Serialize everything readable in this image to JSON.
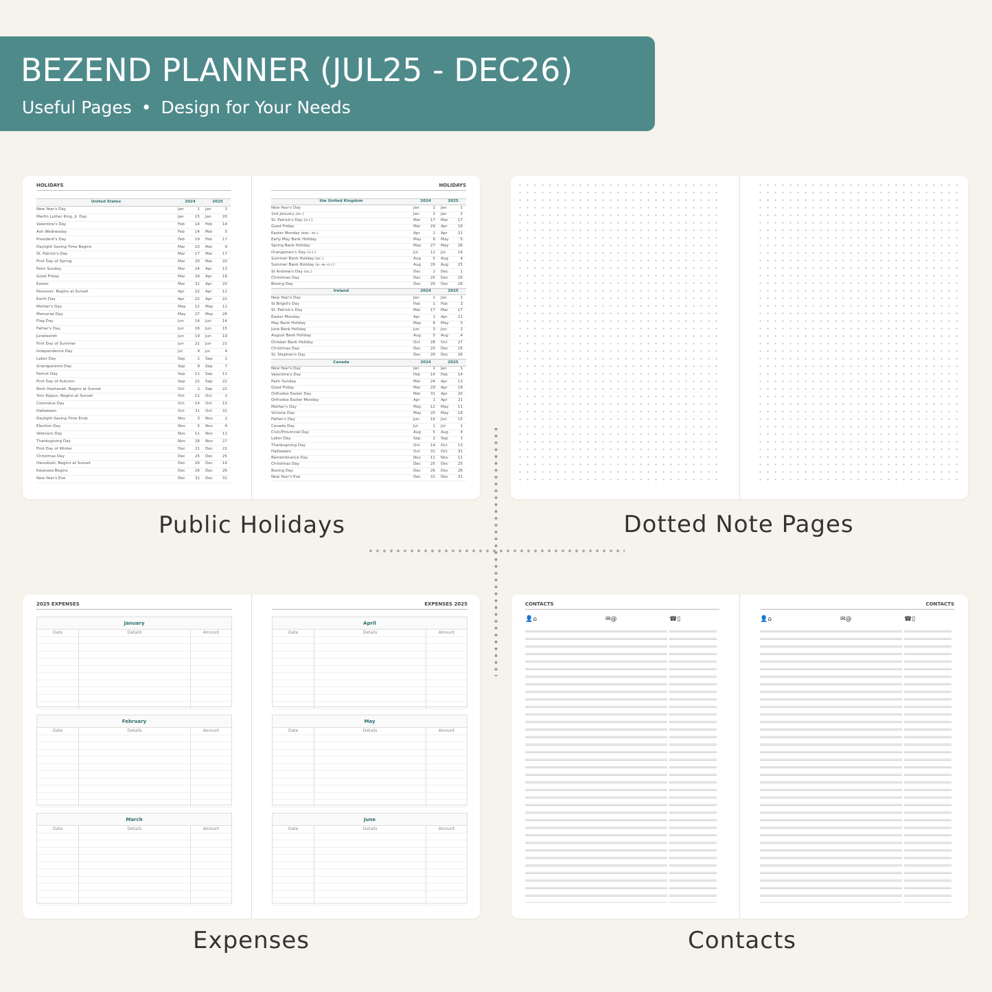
{
  "header": {
    "title": "BEZEND PLANNER (JUL25 - DEC26)",
    "subtitle_left": "Useful Pages",
    "subtitle_sep": "•",
    "subtitle_right": "Design for Your Needs",
    "color": "#4f8a8b"
  },
  "labels": {
    "holidays": "Public Holidays",
    "dotted": "Dotted Note Pages",
    "expenses": "Expenses",
    "contacts": "Contacts"
  },
  "holidays": {
    "page_title": "HOLIDAYS",
    "years": [
      "2024",
      "2025"
    ],
    "sections_left": [
      {
        "country": "United States",
        "rows": [
          [
            "New Year's Day",
            "Jan",
            "1",
            "Jan",
            "1"
          ],
          [
            "Martin Luther King, Jr. Day",
            "Jan",
            "15",
            "Jan",
            "20"
          ],
          [
            "Valentine's Day",
            "Feb",
            "14",
            "Feb",
            "14"
          ],
          [
            "Ash Wednesday",
            "Feb",
            "14",
            "Mar",
            "5"
          ],
          [
            "President's Day",
            "Feb",
            "19",
            "Feb",
            "17"
          ],
          [
            "Daylight Saving Time Begins",
            "Mar",
            "10",
            "Mar",
            "9"
          ],
          [
            "St. Patrick's Day",
            "Mar",
            "17",
            "Mar",
            "17"
          ],
          [
            "First Day of Spring",
            "Mar",
            "20",
            "Mar",
            "20"
          ],
          [
            "Palm Sunday",
            "Mar",
            "24",
            "Apr",
            "13"
          ],
          [
            "Good Friday",
            "Mar",
            "29",
            "Apr",
            "18"
          ],
          [
            "Easter",
            "Mar",
            "31",
            "Apr",
            "20"
          ],
          [
            "Passover, Begins at Sunset",
            "Apr",
            "22",
            "Apr",
            "12"
          ],
          [
            "Earth Day",
            "Apr",
            "22",
            "Apr",
            "22"
          ],
          [
            "Mother's Day",
            "May",
            "12",
            "May",
            "11"
          ],
          [
            "Memorial Day",
            "May",
            "27",
            "May",
            "26"
          ],
          [
            "Flag Day",
            "Jun",
            "14",
            "Jun",
            "14"
          ],
          [
            "Father's Day",
            "Jun",
            "16",
            "Jun",
            "15"
          ],
          [
            "Juneteenth",
            "Jun",
            "19",
            "Jun",
            "19"
          ],
          [
            "First Day of Summer",
            "Jun",
            "21",
            "Jun",
            "21"
          ],
          [
            "Independence Day",
            "Jul",
            "4",
            "Jul",
            "4"
          ],
          [
            "Labor Day",
            "Sep",
            "2",
            "Sep",
            "1"
          ],
          [
            "Grandparents Day",
            "Sep",
            "8",
            "Sep",
            "7"
          ],
          [
            "Patriot Day",
            "Sep",
            "11",
            "Sep",
            "11"
          ],
          [
            "First Day of Autumn",
            "Sep",
            "22",
            "Sep",
            "22"
          ],
          [
            "Rosh Hashanah, Begins at Sunset",
            "Oct",
            "2",
            "Sep",
            "22"
          ],
          [
            "Yom Kippur, Begins at Sunset",
            "Oct",
            "11",
            "Oct",
            "1"
          ],
          [
            "Columbus Day",
            "Oct",
            "14",
            "Oct",
            "13"
          ],
          [
            "Halloween",
            "Oct",
            "31",
            "Oct",
            "31"
          ],
          [
            "Daylight Saving Time Ends",
            "Nov",
            "3",
            "Nov",
            "2"
          ],
          [
            "Election Day",
            "Nov",
            "5",
            "Nov",
            "4"
          ],
          [
            "Veterans Day",
            "Nov",
            "11",
            "Nov",
            "11"
          ],
          [
            "Thanksgiving Day",
            "Nov",
            "28",
            "Nov",
            "27"
          ],
          [
            "First Day of Winter",
            "Dec",
            "21",
            "Dec",
            "21"
          ],
          [
            "Christmas Day",
            "Dec",
            "25",
            "Dec",
            "25"
          ],
          [
            "Hanukkah, Begins at Sunset",
            "Dec",
            "26",
            "Dec",
            "14"
          ],
          [
            "Kwanzaa Begins",
            "Dec",
            "26",
            "Dec",
            "26"
          ],
          [
            "New Year's Eve",
            "Dec",
            "31",
            "Dec",
            "31"
          ]
        ]
      }
    ],
    "sections_right": [
      {
        "country": "the United Kingdom",
        "rows": [
          [
            "New Year's Day",
            "Jan",
            "1",
            "Jan",
            "1"
          ],
          [
            "2nd January (sc.)",
            "Jan",
            "2",
            "Jan",
            "2"
          ],
          [
            "St. Patrick's Day (n.i.)",
            "Mar",
            "17",
            "Mar",
            "17"
          ],
          [
            "Good Friday",
            "Mar",
            "29",
            "Apr",
            "18"
          ],
          [
            "Easter Monday (exc. sc.)",
            "Apr",
            "1",
            "Apr",
            "21"
          ],
          [
            "Early May Bank Holiday",
            "May",
            "6",
            "May",
            "5"
          ],
          [
            "Spring Bank Holiday",
            "May",
            "27",
            "May",
            "26"
          ],
          [
            "Orangemen's Day (n.i.)",
            "Jul",
            "12",
            "Jul",
            "14"
          ],
          [
            "Summer Bank Holiday (sc.)",
            "Aug",
            "5",
            "Aug",
            "4"
          ],
          [
            "Summer Bank Holiday (e.-w.-n.i.)",
            "Aug",
            "26",
            "Aug",
            "25"
          ],
          [
            "St Andrew's Day (sc.)",
            "Dec",
            "2",
            "Dec",
            "1"
          ],
          [
            "Christmas Day",
            "Dec",
            "25",
            "Dec",
            "25"
          ],
          [
            "Boxing Day",
            "Dec",
            "26",
            "Dec",
            "26"
          ]
        ]
      },
      {
        "country": "Ireland",
        "rows": [
          [
            "New Year's Day",
            "Jan",
            "1",
            "Jan",
            "1"
          ],
          [
            "St Brigid's Day",
            "Feb",
            "1",
            "Feb",
            "3"
          ],
          [
            "St. Patrick's Day",
            "Mar",
            "17",
            "Mar",
            "17"
          ],
          [
            "Easter Monday",
            "Apr",
            "1",
            "Apr",
            "21"
          ],
          [
            "May Bank Holiday",
            "May",
            "6",
            "May",
            "5"
          ],
          [
            "June Bank Holiday",
            "Jun",
            "3",
            "Jun",
            "2"
          ],
          [
            "August Bank Holiday",
            "Aug",
            "5",
            "Aug",
            "4"
          ],
          [
            "October Bank Holiday",
            "Oct",
            "28",
            "Oct",
            "27"
          ],
          [
            "Christmas Day",
            "Dec",
            "25",
            "Dec",
            "25"
          ],
          [
            "St. Stephen's Day",
            "Dec",
            "26",
            "Dec",
            "26"
          ]
        ]
      },
      {
        "country": "Canada",
        "rows": [
          [
            "New Year's Day",
            "Jan",
            "1",
            "Jan",
            "1"
          ],
          [
            "Valentine's Day",
            "Feb",
            "14",
            "Feb",
            "14"
          ],
          [
            "Palm Sunday",
            "Mar",
            "24",
            "Apr",
            "13"
          ],
          [
            "Good Friday",
            "Mar",
            "29",
            "Apr",
            "18"
          ],
          [
            "Orthodox Easter Day",
            "Mar",
            "31",
            "Apr",
            "20"
          ],
          [
            "Orthodox Easter Monday",
            "Apr",
            "1",
            "Apr",
            "21"
          ],
          [
            "Mother's Day",
            "May",
            "12",
            "May",
            "11"
          ],
          [
            "Victoria Day",
            "May",
            "20",
            "May",
            "19"
          ],
          [
            "Father's Day",
            "Jun",
            "16",
            "Jun",
            "15"
          ],
          [
            "Canada Day",
            "Jul",
            "1",
            "Jul",
            "1"
          ],
          [
            "Civic/Provincial Day",
            "Aug",
            "5",
            "Aug",
            "4"
          ],
          [
            "Labor Day",
            "Sep",
            "2",
            "Sep",
            "1"
          ],
          [
            "Thanksgiving Day",
            "Oct",
            "14",
            "Oct",
            "13"
          ],
          [
            "Halloween",
            "Oct",
            "31",
            "Oct",
            "31"
          ],
          [
            "Remembrance Day",
            "Nov",
            "11",
            "Nov",
            "11"
          ],
          [
            "Christmas Day",
            "Dec",
            "25",
            "Dec",
            "25"
          ],
          [
            "Boxing Day",
            "Dec",
            "26",
            "Dec",
            "26"
          ],
          [
            "New Year's Eve",
            "Dec",
            "31",
            "Dec",
            "31"
          ]
        ]
      }
    ]
  },
  "expenses": {
    "left_title": "2025 EXPENSES",
    "right_title": "EXPENSES 2025",
    "columns": [
      "Date",
      "Details",
      "Amount"
    ],
    "left_months": [
      "January",
      "February",
      "March"
    ],
    "right_months": [
      "April",
      "May",
      "June"
    ]
  },
  "contacts": {
    "title": "CONTACTS",
    "col_icons": [
      "👤⌂",
      "✉@",
      "☎▯"
    ]
  }
}
